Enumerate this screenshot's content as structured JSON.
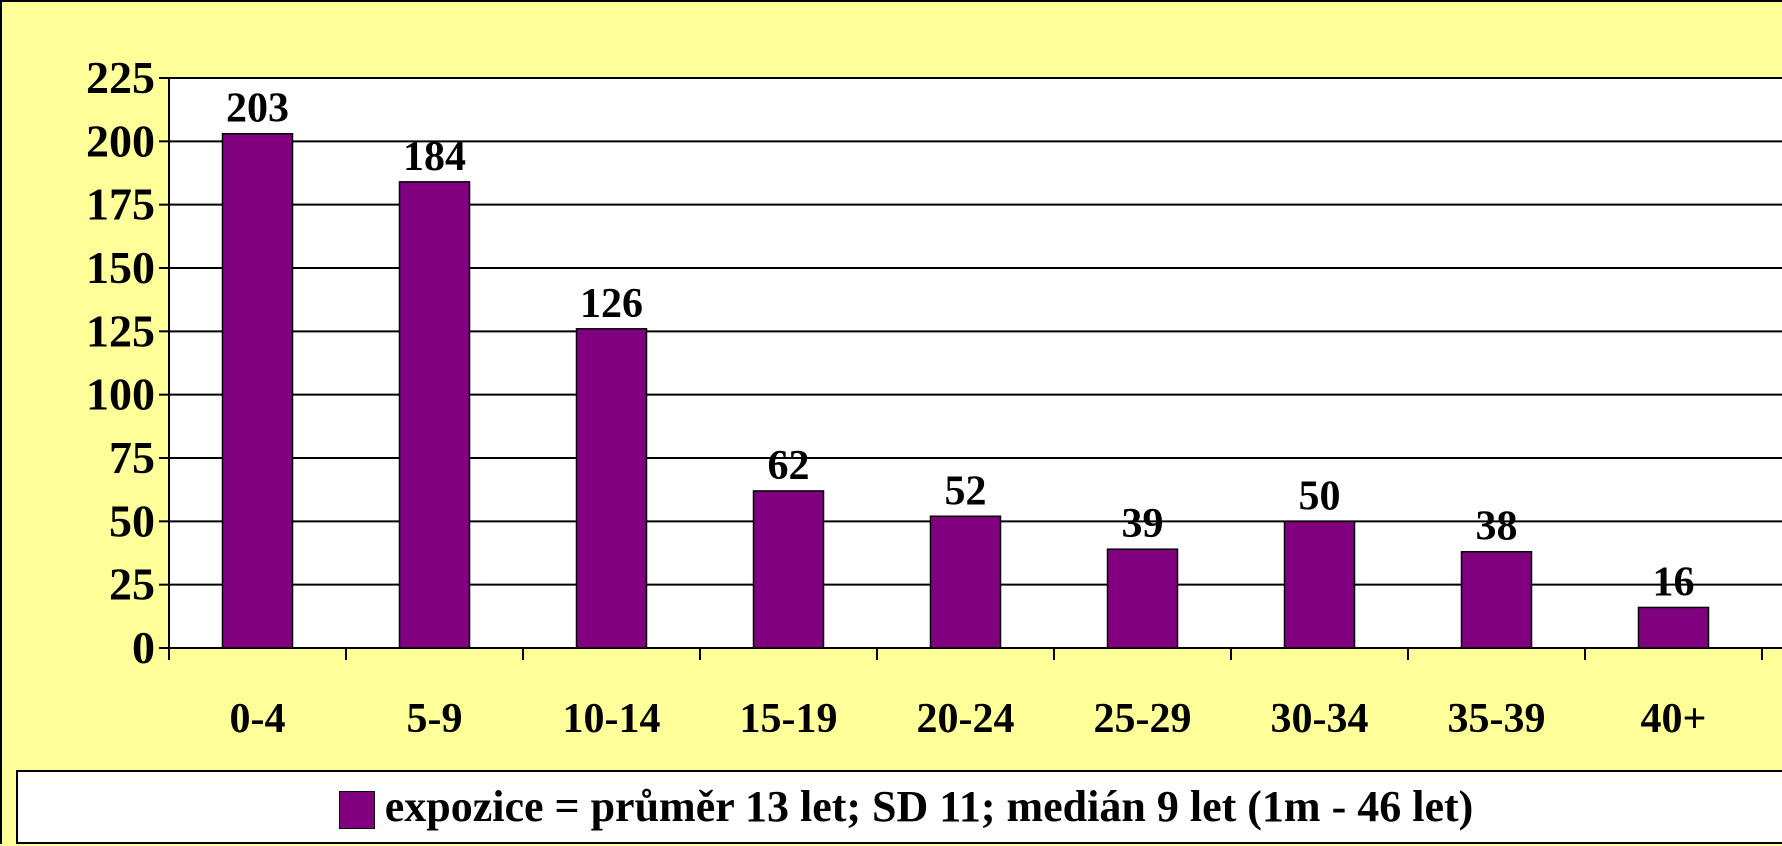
{
  "chart_data": {
    "type": "bar",
    "categories": [
      "0-4",
      "5-9",
      "10-14",
      "15-19",
      "20-24",
      "25-29",
      "30-34",
      "35-39",
      "40+"
    ],
    "series": [
      {
        "name": "expozice = průměr 13 let; SD 11; medián 9 let (1m - 46 let)",
        "values": [
          203,
          184,
          126,
          62,
          52,
          39,
          50,
          38,
          16
        ],
        "color": "#800080"
      }
    ],
    "data_labels": [
      "203",
      "184",
      "126",
      "62",
      "52",
      "39",
      "50",
      "38",
      "16"
    ],
    "yticks": [
      "0",
      "25",
      "50",
      "75",
      "100",
      "125",
      "150",
      "175",
      "200",
      "225"
    ],
    "ylim": [
      0,
      225
    ],
    "grid": true,
    "legend_position": "bottom",
    "title": "",
    "xlabel": "",
    "ylabel": ""
  },
  "colors": {
    "background": "#ffff99",
    "plot_background": "#ffffff",
    "bar": "#800080"
  }
}
